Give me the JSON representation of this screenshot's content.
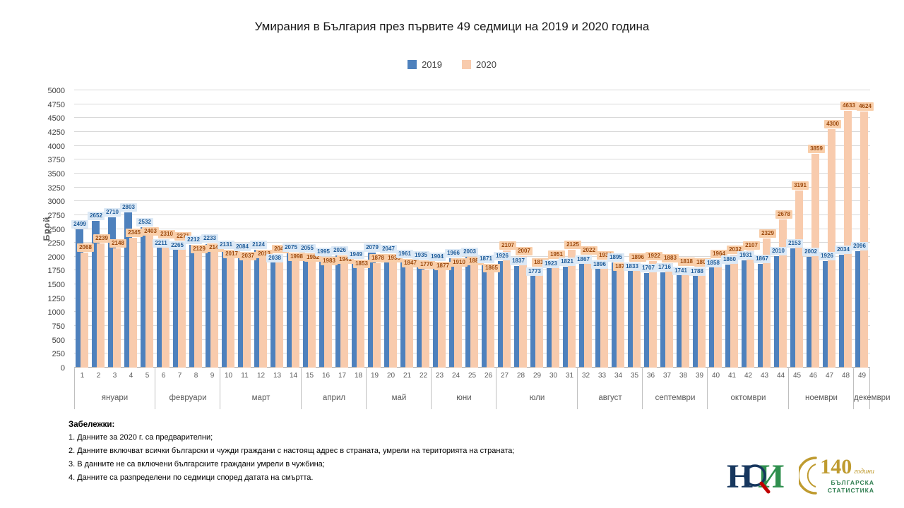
{
  "chart_data": {
    "type": "bar",
    "title": "Умирания в България през първите 49 седмици на 2019 и 2020 година",
    "xlabel": "",
    "ylabel": "Брой",
    "ylim": [
      0,
      5000
    ],
    "ytick_step": 250,
    "grid": true,
    "legend_position": "top",
    "x": [
      1,
      2,
      3,
      4,
      5,
      6,
      7,
      8,
      9,
      10,
      11,
      12,
      13,
      14,
      15,
      16,
      17,
      18,
      19,
      20,
      21,
      22,
      23,
      24,
      25,
      26,
      27,
      28,
      29,
      30,
      31,
      32,
      33,
      34,
      35,
      36,
      37,
      38,
      39,
      40,
      41,
      42,
      43,
      44,
      45,
      46,
      47,
      48,
      49
    ],
    "series": [
      {
        "name": "2019",
        "color": "#4e81bd",
        "label_bg": "#dce9f6",
        "label_color": "#1f5c99",
        "values": [
          2499,
          2652,
          2710,
          2803,
          2532,
          2211,
          2265,
          2212,
          2233,
          2131,
          2084,
          2124,
          2038,
          2075,
          2055,
          1995,
          2026,
          1949,
          2079,
          2047,
          1961,
          1935,
          1904,
          1966,
          2003,
          1871,
          1926,
          1837,
          1773,
          1923,
          1821,
          1867,
          1896,
          1895,
          1833,
          1707,
          1716,
          1741,
          1788,
          1858,
          1860,
          1931,
          1867,
          2010,
          2153,
          2002,
          1926,
          2034,
          2096
        ]
      },
      {
        "name": "2020",
        "color": "#f8cbad",
        "label_bg": "#f9cea9",
        "label_color": "#9c4a0e",
        "values": [
          2068,
          2239,
          2148,
          2345,
          2403,
          2310,
          2271,
          2129,
          2149,
          2017,
          2037,
          2013,
          2042,
          1998,
          1982,
          1983,
          1941,
          1853,
          1878,
          1938,
          1847,
          1770,
          1877,
          1910,
          1884,
          1865,
          2107,
          2007,
          1812,
          1951,
          2125,
          2022,
          1934,
          1870,
          1896,
          1922,
          1883,
          1818,
          1805,
          1964,
          2032,
          2107,
          2329,
          2678,
          3191,
          3859,
          4300,
          4633,
          4624
        ]
      }
    ],
    "month_groups": [
      {
        "label": "януари",
        "weeks": 5
      },
      {
        "label": "февруари",
        "weeks": 4
      },
      {
        "label": "март",
        "weeks": 5
      },
      {
        "label": "април",
        "weeks": 4
      },
      {
        "label": "май",
        "weeks": 4
      },
      {
        "label": "юни",
        "weeks": 4
      },
      {
        "label": "юли",
        "weeks": 5
      },
      {
        "label": "август",
        "weeks": 4
      },
      {
        "label": "септември",
        "weeks": 4
      },
      {
        "label": "октомври",
        "weeks": 5
      },
      {
        "label": "ноември",
        "weeks": 4
      },
      {
        "label": "декември",
        "weeks": 1
      }
    ]
  },
  "notes": {
    "heading": "Забележки:",
    "items": [
      "1. Данните за 2020 г. са предварителни;",
      "2. Данните включват всички български и чужди граждани с настоящ адрес в страната, умрели на територията на страната;",
      "3. В данните не са включени българските граждани умрели в чужбина;",
      "4. Данните са разпределени по седмици според  датата на смъртта."
    ]
  },
  "logos": {
    "nsi_h": "Н",
    "nsi_i": "И",
    "anniv_number": "140",
    "anniv_years": "години",
    "anniv_line1": "БЪЛГАРСКА",
    "anniv_line2": "СТАТИСТИКА"
  }
}
